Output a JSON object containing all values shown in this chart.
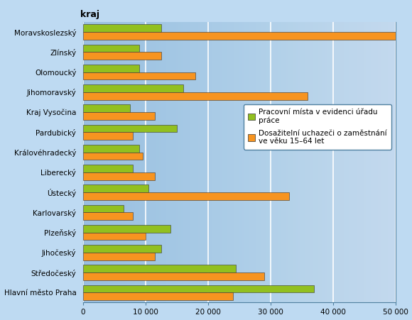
{
  "categories": [
    "Hlavní město Praha",
    "Středočeský",
    "Jihočeský",
    "Plzeňský",
    "Karlovarský",
    "Ústecký",
    "Liberecký",
    "Královéhradecký",
    "Pardubický",
    "Kraj Vysočina",
    "Jihomoravský",
    "Olomoucký",
    "Zlínský",
    "Moravskoslezský"
  ],
  "green_values": [
    37000,
    24500,
    12500,
    14000,
    6500,
    10500,
    8000,
    9000,
    15000,
    7500,
    16000,
    9000,
    9000,
    12500
  ],
  "orange_values": [
    24000,
    29000,
    11500,
    10000,
    8000,
    33000,
    11500,
    9500,
    8000,
    11500,
    36000,
    18000,
    12500,
    50000
  ],
  "green_color": "#92C01F",
  "orange_color": "#F79420",
  "legend_green": "Pracovní místa v evidenci úřadu\npráce",
  "legend_orange": "Dosažitelní uchazeči o zaměstnání\nve věku 15–64 let",
  "header_label": "kraj",
  "xlim": [
    0,
    50000
  ],
  "xticks": [
    0,
    10000,
    20000,
    30000,
    40000,
    50000
  ],
  "xtick_labels": [
    "0",
    "10 000",
    "20 000",
    "30 000",
    "40 000",
    "50 000"
  ],
  "fig_bg_color": "#BEDAF2",
  "plot_bg_left": "#A8CBE8",
  "plot_bg_right": "#DDEEFF",
  "grid_color": "#FFFFFF",
  "bar_height": 0.38,
  "tick_fontsize": 7.5,
  "legend_fontsize": 7.5,
  "header_fontsize": 9
}
